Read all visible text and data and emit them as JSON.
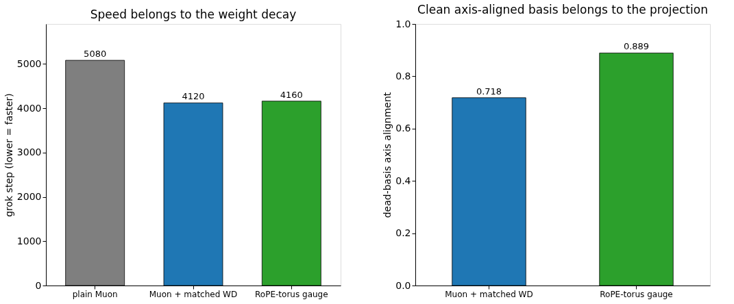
{
  "chart_data": [
    {
      "type": "bar",
      "title": "Speed belongs to the weight decay",
      "ylabel": "grok step (lower = faster)",
      "categories": [
        "plain Muon",
        "Muon + matched WD",
        "RoPE-torus gauge"
      ],
      "values": [
        5080,
        4120,
        4160
      ],
      "colors": [
        "#7f7f7f",
        "#1f77b4",
        "#2ca02c"
      ],
      "ylim": [
        0,
        5900
      ],
      "yticks": [
        0,
        1000,
        2000,
        3000,
        4000,
        5000
      ],
      "data_labels": true
    },
    {
      "type": "bar",
      "title": "Clean axis-aligned basis belongs to the projection",
      "ylabel": "dead-basis axis alignment",
      "categories": [
        "Muon + matched WD",
        "RoPE-torus gauge"
      ],
      "values": [
        0.718,
        0.889
      ],
      "colors": [
        "#1f77b4",
        "#2ca02c"
      ],
      "ylim": [
        0,
        1.0
      ],
      "yticks": [
        {
          "value": 0,
          "label": "0.0"
        },
        0.2,
        0.4,
        0.6,
        0.8,
        {
          "value": 1,
          "label": "1.0"
        }
      ],
      "data_labels": true
    }
  ]
}
